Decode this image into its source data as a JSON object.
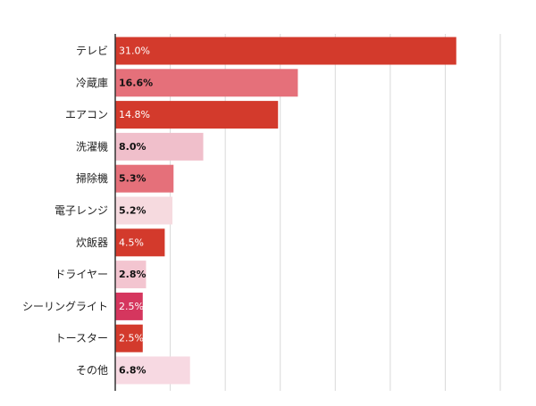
{
  "chart_data": {
    "type": "bar",
    "orientation": "horizontal",
    "categories": [
      "テレビ",
      "冷蔵庫",
      "エアコン",
      "洗濯機",
      "掃除機",
      "電子レンジ",
      "炊飯器",
      "ドライヤー",
      "シーリングライト",
      "トースター",
      "その他"
    ],
    "values": [
      31.0,
      16.6,
      14.8,
      8.0,
      5.3,
      5.2,
      4.5,
      2.8,
      2.5,
      2.5,
      6.8
    ],
    "value_labels": [
      "31.0%",
      "16.6%",
      "14.8%",
      "8.0%",
      "5.3%",
      "5.2%",
      "4.5%",
      "2.8%",
      "2.5%",
      "2.5%",
      "6.8%"
    ],
    "bar_colors": [
      "#d33a2c",
      "#e5707a",
      "#d33a2c",
      "#f0bfcb",
      "#e5707a",
      "#f6dadf",
      "#d33a2c",
      "#f3c5d0",
      "#d5365e",
      "#d33a2c",
      "#f7d9e2"
    ],
    "label_colors": [
      "#ffffff",
      "#111111",
      "#ffffff",
      "#111111",
      "#111111",
      "#111111",
      "#ffffff",
      "#111111",
      "#ffffff",
      "#ffffff",
      "#111111"
    ],
    "xlim": [
      0,
      35
    ],
    "grid": true,
    "legend": "none",
    "title": "",
    "xlabel": "",
    "ylabel": ""
  }
}
